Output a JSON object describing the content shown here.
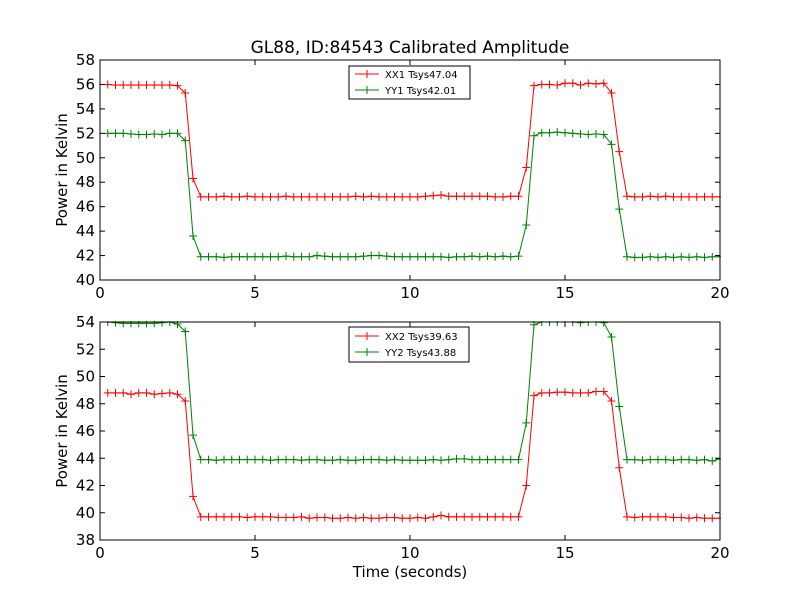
{
  "chart_data": [
    {
      "type": "line",
      "title": "GL88, ID:84543 Calibrated Amplitude",
      "xlabel": "",
      "ylabel": "Power in Kelvin",
      "xlim": [
        0,
        20
      ],
      "ylim": [
        40,
        58
      ],
      "xticks": [
        0,
        5,
        10,
        15,
        20
      ],
      "yticks": [
        40,
        42,
        44,
        46,
        48,
        50,
        52,
        54,
        56,
        58
      ],
      "grid": false,
      "legend_position": "top-center",
      "x": [
        0.25,
        0.5,
        0.75,
        1.0,
        1.25,
        1.5,
        1.75,
        2.0,
        2.25,
        2.5,
        2.75,
        3.0,
        3.25,
        3.5,
        3.75,
        4.0,
        4.25,
        4.5,
        4.75,
        5.0,
        5.25,
        5.5,
        5.75,
        6.0,
        6.25,
        6.5,
        6.75,
        7.0,
        7.25,
        7.5,
        7.75,
        8.0,
        8.25,
        8.5,
        8.75,
        9.0,
        9.25,
        9.5,
        9.75,
        10.0,
        10.25,
        10.5,
        10.75,
        11.0,
        11.25,
        11.5,
        11.75,
        12.0,
        12.25,
        12.5,
        12.75,
        13.0,
        13.25,
        13.5,
        13.75,
        14.0,
        14.25,
        14.5,
        14.75,
        15.0,
        15.25,
        15.5,
        15.75,
        16.0,
        16.25,
        16.5,
        16.75,
        17.0,
        17.25,
        17.5,
        17.75,
        18.0,
        18.25,
        18.5,
        18.75,
        19.0,
        19.25,
        19.5,
        19.75,
        20.0
      ],
      "series": [
        {
          "name": "XX1 Tsys47.04",
          "color": "#ff0000",
          "values": [
            56.0,
            55.95,
            55.95,
            55.95,
            55.95,
            55.95,
            55.95,
            55.95,
            55.95,
            55.9,
            55.3,
            48.3,
            46.8,
            46.8,
            46.8,
            46.85,
            46.8,
            46.8,
            46.85,
            46.8,
            46.8,
            46.8,
            46.8,
            46.85,
            46.8,
            46.8,
            46.8,
            46.8,
            46.8,
            46.8,
            46.8,
            46.8,
            46.85,
            46.8,
            46.85,
            46.8,
            46.8,
            46.8,
            46.8,
            46.8,
            46.8,
            46.85,
            46.9,
            46.95,
            46.85,
            46.85,
            46.85,
            46.85,
            46.85,
            46.85,
            46.8,
            46.8,
            46.85,
            46.85,
            49.2,
            55.9,
            56.0,
            56.0,
            55.95,
            56.1,
            56.1,
            55.95,
            56.1,
            56.05,
            56.1,
            55.3,
            50.5,
            46.85,
            46.8,
            46.8,
            46.85,
            46.8,
            46.85,
            46.8,
            46.8,
            46.8,
            46.8,
            46.8,
            46.8,
            46.8
          ]
        },
        {
          "name": "YY1 Tsys42.01",
          "color": "#008000",
          "values": [
            52.0,
            52.0,
            52.0,
            51.95,
            51.9,
            51.9,
            51.95,
            51.9,
            52.0,
            52.0,
            51.4,
            43.6,
            41.9,
            41.9,
            41.9,
            41.85,
            41.9,
            41.9,
            41.9,
            41.9,
            41.9,
            41.9,
            41.9,
            41.95,
            41.9,
            41.9,
            41.9,
            42.0,
            41.95,
            41.9,
            41.9,
            41.9,
            41.9,
            41.95,
            42.0,
            42.0,
            41.95,
            41.9,
            41.9,
            41.9,
            41.9,
            41.9,
            41.9,
            41.9,
            41.85,
            41.9,
            41.9,
            41.95,
            41.9,
            41.95,
            41.9,
            41.95,
            41.9,
            41.95,
            44.5,
            51.8,
            52.05,
            52.05,
            52.1,
            52.05,
            52.0,
            51.95,
            51.9,
            51.95,
            51.9,
            51.1,
            45.8,
            41.9,
            41.85,
            41.85,
            41.9,
            41.85,
            41.9,
            41.85,
            41.9,
            41.85,
            41.9,
            41.85,
            41.9,
            41.9
          ]
        }
      ]
    },
    {
      "type": "line",
      "title": "",
      "xlabel": "Time (seconds)",
      "ylabel": "Power in Kelvin",
      "xlim": [
        0,
        20
      ],
      "ylim": [
        38,
        54
      ],
      "xticks": [
        0,
        5,
        10,
        15,
        20
      ],
      "yticks": [
        38,
        40,
        42,
        44,
        46,
        48,
        50,
        52,
        54
      ],
      "grid": false,
      "legend_position": "top-center",
      "x": [
        0.25,
        0.5,
        0.75,
        1.0,
        1.25,
        1.5,
        1.75,
        2.0,
        2.25,
        2.5,
        2.75,
        3.0,
        3.25,
        3.5,
        3.75,
        4.0,
        4.25,
        4.5,
        4.75,
        5.0,
        5.25,
        5.5,
        5.75,
        6.0,
        6.25,
        6.5,
        6.75,
        7.0,
        7.25,
        7.5,
        7.75,
        8.0,
        8.25,
        8.5,
        8.75,
        9.0,
        9.25,
        9.5,
        9.75,
        10.0,
        10.25,
        10.5,
        10.75,
        11.0,
        11.25,
        11.5,
        11.75,
        12.0,
        12.25,
        12.5,
        12.75,
        13.0,
        13.25,
        13.5,
        13.75,
        14.0,
        14.25,
        14.5,
        14.75,
        15.0,
        15.25,
        15.5,
        15.75,
        16.0,
        16.25,
        16.5,
        16.75,
        17.0,
        17.25,
        17.5,
        17.75,
        18.0,
        18.25,
        18.5,
        18.75,
        19.0,
        19.25,
        19.5,
        19.75,
        20.0
      ],
      "series": [
        {
          "name": "XX2 Tsys39.63",
          "color": "#ff0000",
          "values": [
            48.8,
            48.8,
            48.8,
            48.7,
            48.8,
            48.8,
            48.7,
            48.75,
            48.8,
            48.7,
            48.2,
            41.2,
            39.7,
            39.7,
            39.7,
            39.7,
            39.7,
            39.7,
            39.65,
            39.7,
            39.7,
            39.7,
            39.65,
            39.65,
            39.65,
            39.7,
            39.6,
            39.65,
            39.65,
            39.6,
            39.6,
            39.65,
            39.6,
            39.65,
            39.6,
            39.6,
            39.65,
            39.65,
            39.6,
            39.6,
            39.65,
            39.6,
            39.7,
            39.8,
            39.7,
            39.7,
            39.7,
            39.7,
            39.7,
            39.7,
            39.7,
            39.7,
            39.7,
            39.7,
            42.0,
            48.6,
            48.8,
            48.8,
            48.85,
            48.85,
            48.8,
            48.8,
            48.8,
            48.9,
            48.9,
            48.2,
            43.3,
            39.7,
            39.65,
            39.7,
            39.7,
            39.7,
            39.7,
            39.65,
            39.65,
            39.6,
            39.65,
            39.6,
            39.6,
            39.6
          ]
        },
        {
          "name": "YY2 Tsys43.88",
          "color": "#008000",
          "values": [
            54.0,
            53.95,
            53.9,
            53.9,
            53.9,
            53.9,
            53.9,
            53.95,
            54.0,
            53.85,
            53.3,
            45.7,
            43.9,
            43.9,
            43.85,
            43.9,
            43.9,
            43.9,
            43.9,
            43.9,
            43.9,
            43.85,
            43.9,
            43.9,
            43.9,
            43.85,
            43.9,
            43.9,
            43.85,
            43.85,
            43.9,
            43.85,
            43.85,
            43.9,
            43.9,
            43.9,
            43.85,
            43.9,
            43.85,
            43.85,
            43.85,
            43.85,
            43.9,
            43.85,
            43.9,
            43.95,
            43.95,
            43.9,
            43.9,
            43.9,
            43.9,
            43.9,
            43.9,
            43.9,
            46.6,
            53.8,
            54.0,
            54.0,
            54.0,
            54.0,
            54.0,
            53.95,
            54.0,
            54.0,
            53.95,
            52.9,
            47.8,
            43.9,
            43.9,
            43.85,
            43.9,
            43.9,
            43.9,
            43.85,
            43.9,
            43.9,
            43.85,
            43.9,
            43.8,
            43.95
          ]
        }
      ]
    }
  ]
}
